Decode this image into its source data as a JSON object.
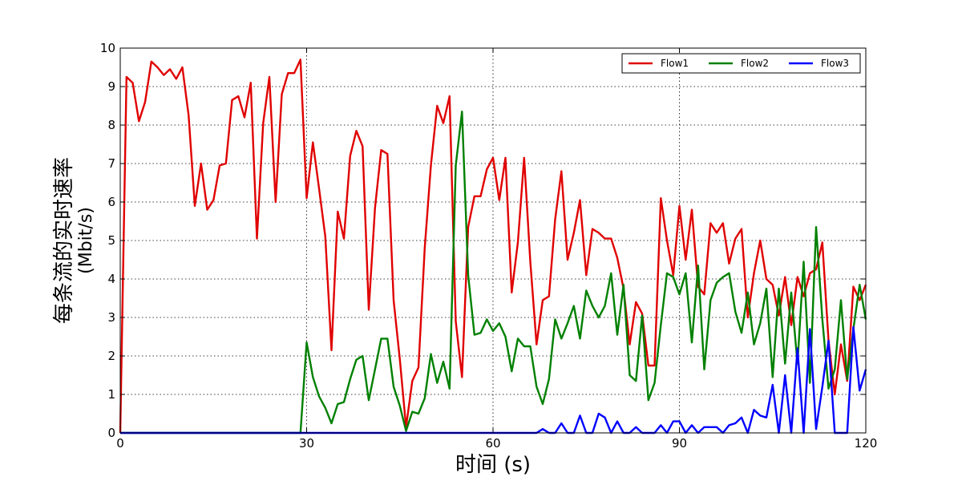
{
  "chart_data": {
    "type": "line",
    "xlabel": "时间 (s)",
    "ylabel_line1": "每条流的实时速率",
    "ylabel_line2": "(Mbit/s)",
    "xlim": [
      0,
      120
    ],
    "ylim": [
      0,
      10
    ],
    "xticks": [
      0,
      30,
      60,
      90,
      120
    ],
    "yticks": [
      0,
      1,
      2,
      3,
      4,
      5,
      6,
      7,
      8,
      9,
      10
    ],
    "grid": true,
    "legend_position": "top-right",
    "series": [
      {
        "name": "Flow1",
        "color": "#e00000",
        "points": [
          [
            0,
            0
          ],
          [
            1,
            9.25
          ],
          [
            2,
            9.1
          ],
          [
            3,
            8.1
          ],
          [
            4,
            8.6
          ],
          [
            5,
            9.65
          ],
          [
            6,
            9.5
          ],
          [
            7,
            9.3
          ],
          [
            8,
            9.45
          ],
          [
            9,
            9.2
          ],
          [
            10,
            9.5
          ],
          [
            11,
            8.25
          ],
          [
            12,
            5.9
          ],
          [
            13,
            7.0
          ],
          [
            14,
            5.8
          ],
          [
            15,
            6.05
          ],
          [
            16,
            6.95
          ],
          [
            17,
            7.0
          ],
          [
            18,
            8.65
          ],
          [
            19,
            8.75
          ],
          [
            20,
            8.2
          ],
          [
            21,
            9.1
          ],
          [
            22,
            5.05
          ],
          [
            23,
            8.05
          ],
          [
            24,
            9.25
          ],
          [
            25,
            6.0
          ],
          [
            26,
            8.8
          ],
          [
            27,
            9.35
          ],
          [
            28,
            9.35
          ],
          [
            29,
            9.7
          ],
          [
            30,
            6.1
          ],
          [
            31,
            7.55
          ],
          [
            32,
            6.35
          ],
          [
            33,
            5.1
          ],
          [
            34,
            2.15
          ],
          [
            35,
            5.75
          ],
          [
            36,
            5.05
          ],
          [
            37,
            7.2
          ],
          [
            38,
            7.85
          ],
          [
            39,
            7.45
          ],
          [
            40,
            3.2
          ],
          [
            41,
            5.85
          ],
          [
            42,
            7.35
          ],
          [
            43,
            7.25
          ],
          [
            44,
            3.45
          ],
          [
            45,
            1.9
          ],
          [
            46,
            0.15
          ],
          [
            47,
            1.35
          ],
          [
            48,
            1.7
          ],
          [
            49,
            4.8
          ],
          [
            50,
            6.95
          ],
          [
            51,
            8.5
          ],
          [
            52,
            8.05
          ],
          [
            53,
            8.75
          ],
          [
            54,
            2.9
          ],
          [
            55,
            1.45
          ],
          [
            56,
            5.35
          ],
          [
            57,
            6.15
          ],
          [
            58,
            6.15
          ],
          [
            59,
            6.85
          ],
          [
            60,
            7.15
          ],
          [
            61,
            6.05
          ],
          [
            62,
            7.15
          ],
          [
            63,
            3.65
          ],
          [
            64,
            4.95
          ],
          [
            65,
            7.15
          ],
          [
            66,
            4.45
          ],
          [
            67,
            2.3
          ],
          [
            68,
            3.45
          ],
          [
            69,
            3.55
          ],
          [
            70,
            5.55
          ],
          [
            71,
            6.8
          ],
          [
            72,
            4.5
          ],
          [
            73,
            5.2
          ],
          [
            74,
            6.05
          ],
          [
            75,
            4.1
          ],
          [
            76,
            5.3
          ],
          [
            77,
            5.2
          ],
          [
            78,
            5.05
          ],
          [
            79,
            5.05
          ],
          [
            80,
            4.55
          ],
          [
            81,
            3.75
          ],
          [
            82,
            2.3
          ],
          [
            83,
            3.4
          ],
          [
            84,
            3.1
          ],
          [
            85,
            1.75
          ],
          [
            86,
            1.75
          ],
          [
            87,
            6.1
          ],
          [
            88,
            5.0
          ],
          [
            89,
            4.1
          ],
          [
            90,
            5.9
          ],
          [
            91,
            4.5
          ],
          [
            92,
            5.8
          ],
          [
            93,
            3.8
          ],
          [
            94,
            3.6
          ],
          [
            95,
            5.45
          ],
          [
            96,
            5.2
          ],
          [
            97,
            5.45
          ],
          [
            98,
            4.4
          ],
          [
            99,
            5.05
          ],
          [
            100,
            5.3
          ],
          [
            101,
            3.0
          ],
          [
            102,
            4.15
          ],
          [
            103,
            5.0
          ],
          [
            104,
            4.0
          ],
          [
            105,
            3.85
          ],
          [
            106,
            3.05
          ],
          [
            107,
            4.05
          ],
          [
            108,
            2.8
          ],
          [
            109,
            4.05
          ],
          [
            110,
            3.55
          ],
          [
            111,
            4.15
          ],
          [
            112,
            4.25
          ],
          [
            113,
            4.95
          ],
          [
            114,
            2.4
          ],
          [
            115,
            1.0
          ],
          [
            116,
            2.3
          ],
          [
            117,
            1.35
          ],
          [
            118,
            3.8
          ],
          [
            119,
            3.45
          ],
          [
            120,
            3.85
          ]
        ]
      },
      {
        "name": "Flow2",
        "color": "#008000",
        "points": [
          [
            0,
            0
          ],
          [
            29,
            0
          ],
          [
            30,
            2.35
          ],
          [
            31,
            1.45
          ],
          [
            32,
            0.95
          ],
          [
            33,
            0.65
          ],
          [
            34,
            0.25
          ],
          [
            35,
            0.75
          ],
          [
            36,
            0.8
          ],
          [
            37,
            1.4
          ],
          [
            38,
            1.9
          ],
          [
            39,
            2.0
          ],
          [
            40,
            0.85
          ],
          [
            41,
            1.65
          ],
          [
            42,
            2.45
          ],
          [
            43,
            2.45
          ],
          [
            44,
            1.2
          ],
          [
            45,
            0.7
          ],
          [
            46,
            0.05
          ],
          [
            47,
            0.55
          ],
          [
            48,
            0.5
          ],
          [
            49,
            0.9
          ],
          [
            50,
            2.05
          ],
          [
            51,
            1.3
          ],
          [
            52,
            1.85
          ],
          [
            53,
            1.15
          ],
          [
            54,
            6.95
          ],
          [
            55,
            8.35
          ],
          [
            56,
            4.1
          ],
          [
            57,
            2.55
          ],
          [
            58,
            2.6
          ],
          [
            59,
            2.95
          ],
          [
            60,
            2.65
          ],
          [
            61,
            2.85
          ],
          [
            62,
            2.5
          ],
          [
            63,
            1.6
          ],
          [
            64,
            2.45
          ],
          [
            65,
            2.25
          ],
          [
            66,
            2.25
          ],
          [
            67,
            1.2
          ],
          [
            68,
            0.75
          ],
          [
            69,
            1.4
          ],
          [
            70,
            2.95
          ],
          [
            71,
            2.45
          ],
          [
            72,
            2.85
          ],
          [
            73,
            3.3
          ],
          [
            74,
            2.45
          ],
          [
            75,
            3.7
          ],
          [
            76,
            3.3
          ],
          [
            77,
            3.0
          ],
          [
            78,
            3.3
          ],
          [
            79,
            4.15
          ],
          [
            80,
            2.55
          ],
          [
            81,
            3.85
          ],
          [
            82,
            1.5
          ],
          [
            83,
            1.35
          ],
          [
            84,
            3.05
          ],
          [
            85,
            0.85
          ],
          [
            86,
            1.3
          ],
          [
            87,
            2.8
          ],
          [
            88,
            4.15
          ],
          [
            89,
            4.05
          ],
          [
            90,
            3.6
          ],
          [
            91,
            4.15
          ],
          [
            92,
            2.35
          ],
          [
            93,
            4.35
          ],
          [
            94,
            1.65
          ],
          [
            95,
            3.45
          ],
          [
            96,
            3.9
          ],
          [
            97,
            4.05
          ],
          [
            98,
            4.15
          ],
          [
            99,
            3.15
          ],
          [
            100,
            2.6
          ],
          [
            101,
            3.65
          ],
          [
            102,
            2.3
          ],
          [
            103,
            2.85
          ],
          [
            104,
            3.75
          ],
          [
            105,
            1.45
          ],
          [
            106,
            3.75
          ],
          [
            107,
            1.8
          ],
          [
            108,
            3.65
          ],
          [
            109,
            1.8
          ],
          [
            110,
            4.45
          ],
          [
            111,
            1.3
          ],
          [
            112,
            5.35
          ],
          [
            113,
            2.95
          ],
          [
            114,
            1.15
          ],
          [
            115,
            1.65
          ],
          [
            116,
            3.45
          ],
          [
            117,
            1.4
          ],
          [
            118,
            2.7
          ],
          [
            119,
            3.85
          ],
          [
            120,
            2.95
          ]
        ]
      },
      {
        "name": "Flow3",
        "color": "#0000ff",
        "points": [
          [
            0,
            0
          ],
          [
            67,
            0
          ],
          [
            68,
            0.1
          ],
          [
            69,
            0
          ],
          [
            70,
            0
          ],
          [
            71,
            0.25
          ],
          [
            72,
            0
          ],
          [
            73,
            0
          ],
          [
            74,
            0.45
          ],
          [
            75,
            0
          ],
          [
            76,
            0
          ],
          [
            77,
            0.5
          ],
          [
            78,
            0.4
          ],
          [
            79,
            0
          ],
          [
            80,
            0.3
          ],
          [
            81,
            0
          ],
          [
            82,
            0
          ],
          [
            83,
            0.15
          ],
          [
            84,
            0
          ],
          [
            85,
            0
          ],
          [
            86,
            0
          ],
          [
            87,
            0.2
          ],
          [
            88,
            0
          ],
          [
            89,
            0.3
          ],
          [
            90,
            0.3
          ],
          [
            91,
            0
          ],
          [
            92,
            0.2
          ],
          [
            93,
            0
          ],
          [
            94,
            0.15
          ],
          [
            95,
            0.15
          ],
          [
            96,
            0.15
          ],
          [
            97,
            0
          ],
          [
            98,
            0.2
          ],
          [
            99,
            0.25
          ],
          [
            100,
            0.4
          ],
          [
            101,
            0
          ],
          [
            102,
            0.6
          ],
          [
            103,
            0.45
          ],
          [
            104,
            0.4
          ],
          [
            105,
            1.25
          ],
          [
            106,
            0
          ],
          [
            107,
            1.5
          ],
          [
            108,
            0
          ],
          [
            109,
            2.2
          ],
          [
            110,
            0
          ],
          [
            111,
            2.7
          ],
          [
            112,
            0.1
          ],
          [
            113,
            1.2
          ],
          [
            114,
            2.4
          ],
          [
            115,
            0
          ],
          [
            116,
            0
          ],
          [
            117,
            0
          ],
          [
            118,
            2.75
          ],
          [
            119,
            1.1
          ],
          [
            120,
            1.65
          ]
        ]
      }
    ]
  }
}
